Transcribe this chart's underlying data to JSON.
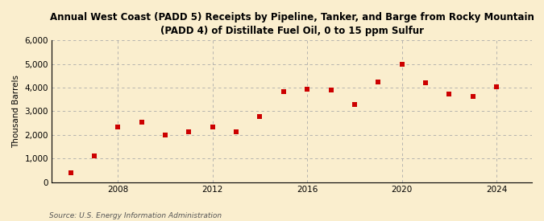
{
  "title": "Annual West Coast (PADD 5) Receipts by Pipeline, Tanker, and Barge from Rocky Mountain\n(PADD 4) of Distillate Fuel Oil, 0 to 15 ppm Sulfur",
  "ylabel": "Thousand Barrels",
  "source": "Source: U.S. Energy Information Administration",
  "years": [
    2006,
    2007,
    2008,
    2009,
    2010,
    2011,
    2012,
    2013,
    2014,
    2015,
    2016,
    2017,
    2018,
    2019,
    2020,
    2021,
    2022,
    2023,
    2024
  ],
  "values": [
    400,
    1100,
    2350,
    2530,
    1980,
    2130,
    2330,
    2120,
    2770,
    3820,
    3950,
    3900,
    3280,
    4230,
    4990,
    4200,
    3720,
    3620,
    4020
  ],
  "marker_color": "#cc0000",
  "bg_color": "#faeece",
  "grid_color": "#aaaaaa",
  "ylim": [
    0,
    6000
  ],
  "yticks": [
    0,
    1000,
    2000,
    3000,
    4000,
    5000,
    6000
  ],
  "xticks": [
    2008,
    2012,
    2016,
    2020,
    2024
  ],
  "xlim": [
    2005.2,
    2025.5
  ]
}
